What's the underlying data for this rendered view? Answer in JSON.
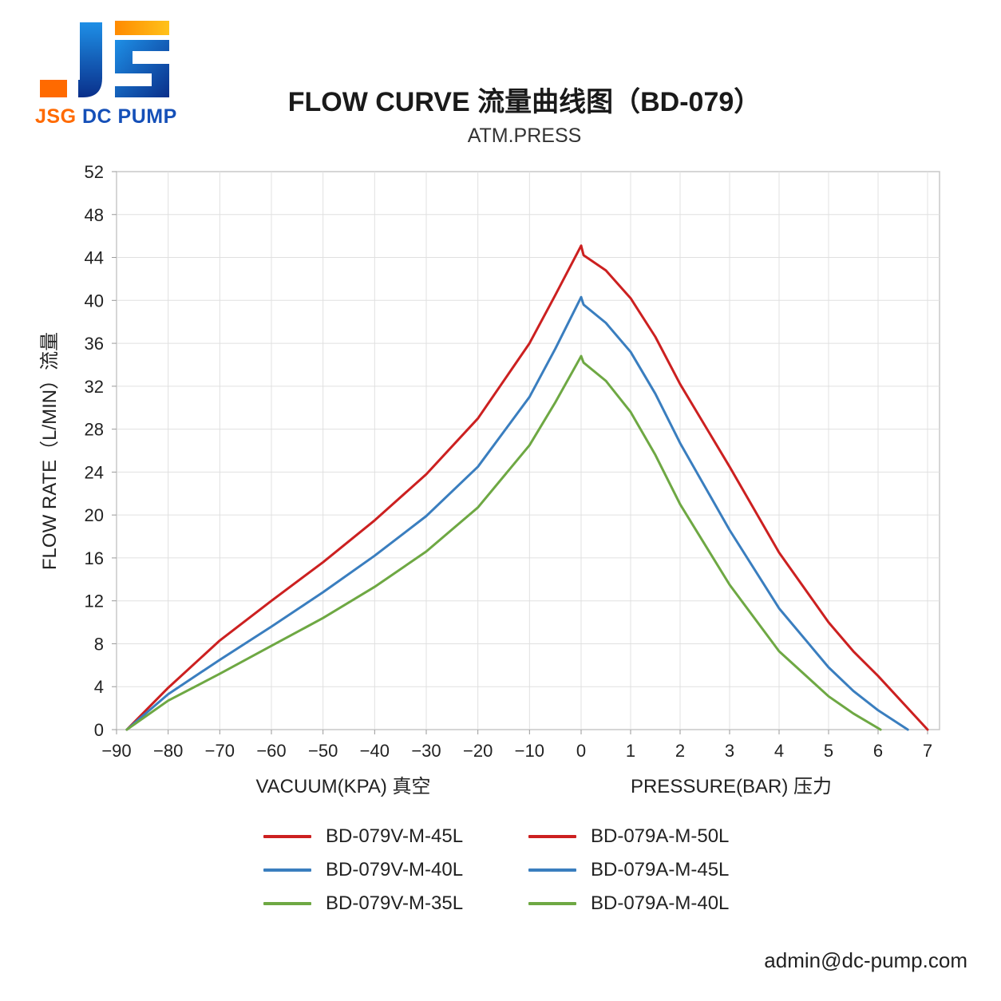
{
  "brand": {
    "logo_name": "JSG",
    "logo_text_part1": "JSG",
    "logo_text_part2": "DC PUMP",
    "colors": {
      "orange": "#ff6a00",
      "blue": "#1550b8",
      "yellow": "#ffc21a"
    }
  },
  "title": "FLOW CURVE 流量曲线图（BD-079）",
  "subtitle": "ATM.PRESS",
  "email": "admin@dc-pump.com",
  "chart_data": {
    "type": "line",
    "ylabel": "FLOW RATE（L/MIN）流量",
    "xlabel_left": "VACUUM(KPA) 真空",
    "xlabel_right": "PRESSURE(BAR) 压力",
    "ylim": [
      0,
      52
    ],
    "y_ticks": [
      0,
      4,
      8,
      12,
      16,
      20,
      24,
      28,
      32,
      36,
      40,
      44,
      48,
      52
    ],
    "vacuum_ticks": [
      "−90",
      "−80",
      "−70",
      "−60",
      "−50",
      "−40",
      "−30",
      "−20",
      "−10",
      "0"
    ],
    "vacuum_range": [
      -90,
      0
    ],
    "pressure_ticks": [
      "1",
      "2",
      "3",
      "4",
      "5",
      "6",
      "7"
    ],
    "pressure_range": [
      0,
      7
    ],
    "grid": true,
    "legend_position": "bottom",
    "vacuum_series": [
      {
        "name": "BD-079V-M-45L",
        "color": "#cc2020",
        "points": [
          [
            -88,
            0
          ],
          [
            -80,
            3.9
          ],
          [
            -70,
            8.3
          ],
          [
            -60,
            12.0
          ],
          [
            -50,
            15.6
          ],
          [
            -40,
            19.5
          ],
          [
            -30,
            23.8
          ],
          [
            -20,
            29.0
          ],
          [
            -10,
            36.0
          ],
          [
            -5,
            40.5
          ],
          [
            0,
            45.1
          ]
        ]
      },
      {
        "name": "BD-079V-M-40L",
        "color": "#3a7ebf",
        "points": [
          [
            -88,
            0
          ],
          [
            -80,
            3.3
          ],
          [
            -70,
            6.5
          ],
          [
            -60,
            9.6
          ],
          [
            -50,
            12.8
          ],
          [
            -40,
            16.2
          ],
          [
            -30,
            19.9
          ],
          [
            -20,
            24.5
          ],
          [
            -10,
            31.0
          ],
          [
            -5,
            35.5
          ],
          [
            0,
            40.3
          ]
        ]
      },
      {
        "name": "BD-079V-M-35L",
        "color": "#6ea843",
        "points": [
          [
            -88,
            0
          ],
          [
            -80,
            2.7
          ],
          [
            -70,
            5.2
          ],
          [
            -60,
            7.8
          ],
          [
            -50,
            10.4
          ],
          [
            -40,
            13.3
          ],
          [
            -30,
            16.6
          ],
          [
            -20,
            20.7
          ],
          [
            -10,
            26.5
          ],
          [
            -5,
            30.5
          ],
          [
            0,
            34.8
          ]
        ]
      }
    ],
    "pressure_series": [
      {
        "name": "BD-079A-M-50L",
        "color": "#cc2020",
        "points": [
          [
            0,
            45.1
          ],
          [
            0.05,
            44.2
          ],
          [
            0.5,
            42.8
          ],
          [
            1,
            40.2
          ],
          [
            1.5,
            36.6
          ],
          [
            2,
            32.2
          ],
          [
            3,
            24.5
          ],
          [
            4,
            16.5
          ],
          [
            5,
            10.0
          ],
          [
            5.5,
            7.3
          ],
          [
            6,
            5.0
          ],
          [
            7,
            0
          ]
        ]
      },
      {
        "name": "BD-079A-M-45L",
        "color": "#3a7ebf",
        "points": [
          [
            0,
            40.3
          ],
          [
            0.05,
            39.6
          ],
          [
            0.5,
            37.9
          ],
          [
            1,
            35.2
          ],
          [
            1.5,
            31.3
          ],
          [
            2,
            26.7
          ],
          [
            3,
            18.6
          ],
          [
            4,
            11.3
          ],
          [
            5,
            5.8
          ],
          [
            5.5,
            3.6
          ],
          [
            6,
            1.8
          ],
          [
            6.6,
            0
          ]
        ]
      },
      {
        "name": "BD-079A-M-40L",
        "color": "#6ea843",
        "points": [
          [
            0,
            34.8
          ],
          [
            0.05,
            34.2
          ],
          [
            0.5,
            32.5
          ],
          [
            1,
            29.6
          ],
          [
            1.5,
            25.6
          ],
          [
            2,
            21.0
          ],
          [
            3,
            13.5
          ],
          [
            4,
            7.3
          ],
          [
            5,
            3.1
          ],
          [
            5.5,
            1.5
          ],
          [
            6.05,
            0
          ]
        ]
      }
    ]
  },
  "legend": [
    {
      "label": "BD-079V-M-45L",
      "color": "#cc2020"
    },
    {
      "label": "BD-079A-M-50L",
      "color": "#cc2020"
    },
    {
      "label": "BD-079V-M-40L",
      "color": "#3a7ebf"
    },
    {
      "label": "BD-079A-M-45L",
      "color": "#3a7ebf"
    },
    {
      "label": "BD-079V-M-35L",
      "color": "#6ea843"
    },
    {
      "label": "BD-079A-M-40L",
      "color": "#6ea843"
    }
  ]
}
